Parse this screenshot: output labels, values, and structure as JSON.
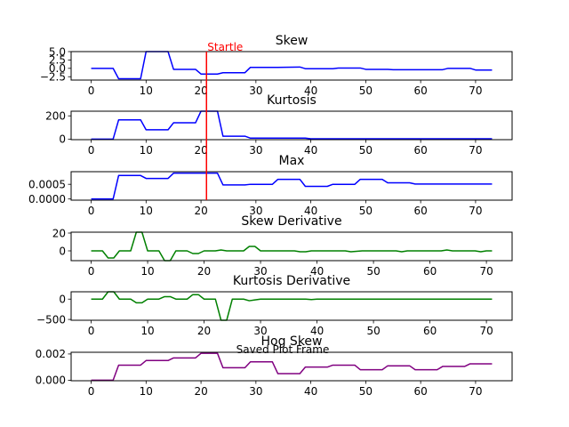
{
  "figure_footer": "Saved Plot Frame",
  "colors": {
    "blue": "#0000ff",
    "green": "#008000",
    "purple": "#800080",
    "marker": "#ff0000"
  },
  "marker": {
    "label": "Startle",
    "x": 21
  },
  "chart_data": [
    {
      "type": "line",
      "title": "Skew",
      "color": "blue",
      "xlim": [
        -3.65,
        76.65
      ],
      "ylim": [
        -3.5,
        5.0
      ],
      "xticks": [
        0,
        10,
        20,
        30,
        40,
        50,
        60,
        70
      ],
      "yticks": [
        -2.5,
        0.0,
        2.5,
        5.0
      ],
      "ytick_labels": [
        "−2.5",
        "0.0",
        "2.5",
        "5.0"
      ],
      "points": [
        [
          0,
          0
        ],
        [
          4,
          0
        ],
        [
          5,
          -3.1
        ],
        [
          9,
          -3.1
        ],
        [
          10,
          5.0
        ],
        [
          14,
          5.0
        ],
        [
          15,
          -0.3
        ],
        [
          19,
          -0.3
        ],
        [
          20,
          -1.7
        ],
        [
          23,
          -1.7
        ],
        [
          24,
          -1.3
        ],
        [
          28,
          -1.3
        ],
        [
          29,
          0.3
        ],
        [
          34,
          0.3
        ],
        [
          38,
          0.4
        ],
        [
          39,
          -0.1
        ],
        [
          44,
          -0.1
        ],
        [
          45,
          0.1
        ],
        [
          49,
          0.1
        ],
        [
          50,
          -0.3
        ],
        [
          54,
          -0.3
        ],
        [
          55,
          -0.4
        ],
        [
          64,
          -0.4
        ],
        [
          65,
          0
        ],
        [
          69,
          0
        ],
        [
          70,
          -0.5
        ],
        [
          73,
          -0.5
        ]
      ]
    },
    {
      "type": "line",
      "title": "Kurtosis",
      "color": "blue",
      "xlim": [
        -3.65,
        76.65
      ],
      "ylim": [
        -5,
        240
      ],
      "xticks": [
        0,
        10,
        20,
        30,
        40,
        50,
        60,
        70
      ],
      "yticks": [
        0,
        200
      ],
      "ytick_labels": [
        "0",
        "200"
      ],
      "points": [
        [
          0,
          0
        ],
        [
          4,
          0
        ],
        [
          5,
          165
        ],
        [
          9,
          165
        ],
        [
          10,
          80
        ],
        [
          14,
          80
        ],
        [
          15,
          140
        ],
        [
          19,
          140
        ],
        [
          20,
          240
        ],
        [
          23,
          240
        ],
        [
          24,
          25
        ],
        [
          28,
          25
        ],
        [
          29,
          8
        ],
        [
          39,
          8
        ],
        [
          40,
          3
        ],
        [
          73,
          3
        ]
      ]
    },
    {
      "type": "line",
      "title": "Max",
      "color": "blue",
      "xlim": [
        -3.65,
        76.65
      ],
      "ylim": [
        -4e-05,
        0.00093
      ],
      "xticks": [
        0,
        10,
        20,
        30,
        40,
        50,
        60,
        70
      ],
      "yticks": [
        0.0,
        0.0005
      ],
      "ytick_labels": [
        "0.0000",
        "0.0005"
      ],
      "points": [
        [
          0,
          0
        ],
        [
          4,
          0
        ],
        [
          5,
          0.0008
        ],
        [
          9,
          0.0008
        ],
        [
          10,
          0.0007
        ],
        [
          14,
          0.0007
        ],
        [
          15,
          0.00088
        ],
        [
          23,
          0.00088
        ],
        [
          24,
          0.00048
        ],
        [
          28,
          0.00048
        ],
        [
          29,
          0.0005
        ],
        [
          33,
          0.0005
        ],
        [
          34,
          0.00067
        ],
        [
          38,
          0.00067
        ],
        [
          39,
          0.00043
        ],
        [
          43,
          0.00043
        ],
        [
          44,
          0.0005
        ],
        [
          48,
          0.0005
        ],
        [
          49,
          0.00067
        ],
        [
          53,
          0.00067
        ],
        [
          54,
          0.00055
        ],
        [
          58,
          0.00055
        ],
        [
          59,
          0.00051
        ],
        [
          73,
          0.00051
        ]
      ]
    },
    {
      "type": "line",
      "title": "Skew Derivative",
      "color": "green",
      "xlim": [
        -3.55,
        74.55
      ],
      "ylim": [
        -11,
        21
      ],
      "xticks": [
        0,
        10,
        20,
        30,
        40,
        50,
        60,
        70
      ],
      "yticks": [
        0,
        20
      ],
      "ytick_labels": [
        "0",
        "20"
      ],
      "points": [
        [
          0,
          0
        ],
        [
          2,
          0
        ],
        [
          3,
          -8
        ],
        [
          4,
          -8
        ],
        [
          5,
          0
        ],
        [
          7,
          0
        ],
        [
          8,
          21
        ],
        [
          9,
          21
        ],
        [
          10,
          0
        ],
        [
          12,
          0
        ],
        [
          13,
          -11
        ],
        [
          14,
          -11
        ],
        [
          15,
          0
        ],
        [
          17,
          0
        ],
        [
          18,
          -3
        ],
        [
          19,
          -3
        ],
        [
          20,
          0
        ],
        [
          22,
          0
        ],
        [
          23,
          1
        ],
        [
          24,
          0
        ],
        [
          27,
          0
        ],
        [
          28,
          5
        ],
        [
          29,
          5
        ],
        [
          30,
          0
        ],
        [
          36,
          0
        ],
        [
          37,
          -1
        ],
        [
          38,
          -1
        ],
        [
          39,
          0
        ],
        [
          45,
          0
        ],
        [
          46,
          -1
        ],
        [
          48,
          0
        ],
        [
          54,
          0
        ],
        [
          55,
          -1
        ],
        [
          56,
          0
        ],
        [
          62,
          0
        ],
        [
          63,
          1
        ],
        [
          64,
          0
        ],
        [
          68,
          0
        ],
        [
          69,
          -1
        ],
        [
          70,
          0
        ],
        [
          71,
          0
        ]
      ]
    },
    {
      "type": "line",
      "title": "Kurtosis Derivative",
      "color": "green",
      "xlim": [
        -3.55,
        74.55
      ],
      "ylim": [
        -520,
        180
      ],
      "xticks": [
        0,
        10,
        20,
        30,
        40,
        50,
        60,
        70
      ],
      "yticks": [
        -500,
        0
      ],
      "ytick_labels": [
        "−500",
        "0"
      ],
      "points": [
        [
          0,
          0
        ],
        [
          2,
          0
        ],
        [
          3,
          180
        ],
        [
          4,
          180
        ],
        [
          5,
          0
        ],
        [
          7,
          0
        ],
        [
          8,
          -90
        ],
        [
          9,
          -90
        ],
        [
          10,
          0
        ],
        [
          12,
          0
        ],
        [
          13,
          60
        ],
        [
          14,
          60
        ],
        [
          15,
          0
        ],
        [
          17,
          0
        ],
        [
          18,
          110
        ],
        [
          19,
          110
        ],
        [
          20,
          0
        ],
        [
          22,
          0
        ],
        [
          23,
          -520
        ],
        [
          24,
          -520
        ],
        [
          25,
          0
        ],
        [
          27,
          0
        ],
        [
          28,
          -40
        ],
        [
          29,
          -20
        ],
        [
          30,
          0
        ],
        [
          38,
          0
        ],
        [
          39,
          -10
        ],
        [
          40,
          0
        ],
        [
          71,
          0
        ]
      ]
    },
    {
      "type": "line",
      "title": "Hog Skew",
      "color": "purple",
      "xlim": [
        -3.65,
        76.65
      ],
      "ylim": [
        -4e-05,
        0.00213
      ],
      "xticks": [
        0,
        10,
        20,
        30,
        40,
        50,
        60,
        70
      ],
      "yticks": [
        0.0,
        0.002
      ],
      "ytick_labels": [
        "0.000",
        "0.002"
      ],
      "points": [
        [
          0,
          0
        ],
        [
          4,
          0
        ],
        [
          5,
          0.00115
        ],
        [
          9,
          0.00115
        ],
        [
          10,
          0.0015
        ],
        [
          14,
          0.0015
        ],
        [
          15,
          0.0017
        ],
        [
          19,
          0.0017
        ],
        [
          20,
          0.00205
        ],
        [
          23,
          0.00205
        ],
        [
          24,
          0.00095
        ],
        [
          28,
          0.00095
        ],
        [
          29,
          0.0014
        ],
        [
          33,
          0.0014
        ],
        [
          34,
          0.0005
        ],
        [
          38,
          0.0005
        ],
        [
          39,
          0.001
        ],
        [
          43,
          0.001
        ],
        [
          44,
          0.00115
        ],
        [
          48,
          0.00115
        ],
        [
          49,
          0.0008
        ],
        [
          53,
          0.0008
        ],
        [
          54,
          0.0011
        ],
        [
          58,
          0.0011
        ],
        [
          59,
          0.0008
        ],
        [
          63,
          0.0008
        ],
        [
          64,
          0.00105
        ],
        [
          68,
          0.00105
        ],
        [
          69,
          0.00125
        ],
        [
          73,
          0.00125
        ]
      ]
    }
  ]
}
